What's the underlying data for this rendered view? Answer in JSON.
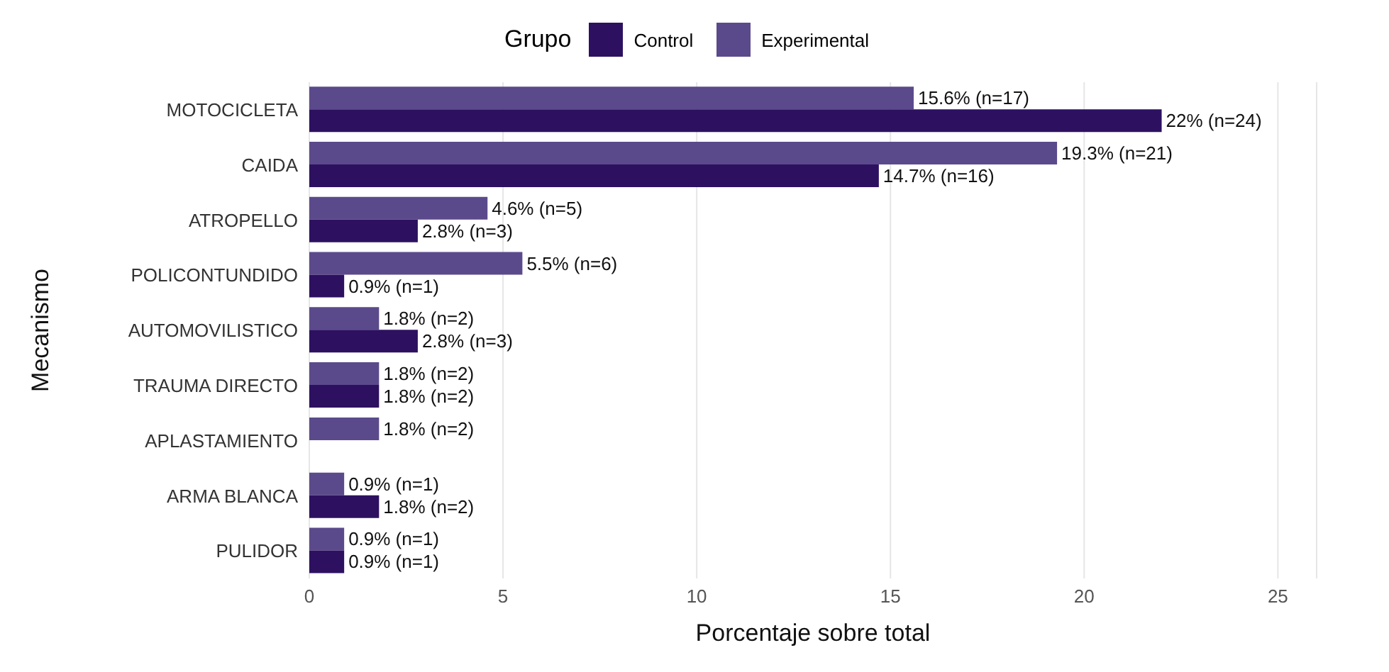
{
  "chart_data": {
    "type": "bar",
    "orientation": "horizontal",
    "xlabel": "Porcentaje sobre total",
    "ylabel": "Mecanismo",
    "legend_title": "Grupo",
    "legend": "top",
    "grid": "x",
    "categories": [
      "MOTOCICLETA",
      "CAIDA",
      "ATROPELLO",
      "POLICONTUNDIDO",
      "AUTOMOVILISTICO",
      "TRAUMA DIRECTO",
      "APLASTAMIENTO",
      "ARMA BLANCA",
      "PULIDOR"
    ],
    "series": [
      {
        "name": "Control",
        "color": "#2d1160",
        "values": [
          22,
          14.7,
          2.8,
          0.9,
          2.8,
          1.8,
          null,
          1.8,
          0.9
        ],
        "value_labels": [
          "22% (n=24)",
          "14.7% (n=16)",
          "2.8% (n=3)",
          "0.9% (n=1)",
          "2.8% (n=3)",
          "1.8% (n=2)",
          null,
          "1.8% (n=2)",
          "0.9% (n=1)"
        ]
      },
      {
        "name": "Experimental",
        "color": "#5b4a8b",
        "values": [
          15.6,
          19.3,
          4.6,
          5.5,
          1.8,
          1.8,
          1.8,
          0.9,
          0.9
        ],
        "value_labels": [
          "15.6% (n=17)",
          "19.3% (n=21)",
          "4.6% (n=5)",
          "5.5% (n=6)",
          "1.8% (n=2)",
          "1.8% (n=2)",
          "1.8% (n=2)",
          "0.9% (n=1)",
          "0.9% (n=1)"
        ]
      }
    ],
    "xlim": [
      0,
      26
    ],
    "xticks": [
      0,
      5,
      10,
      15,
      20,
      25
    ]
  }
}
